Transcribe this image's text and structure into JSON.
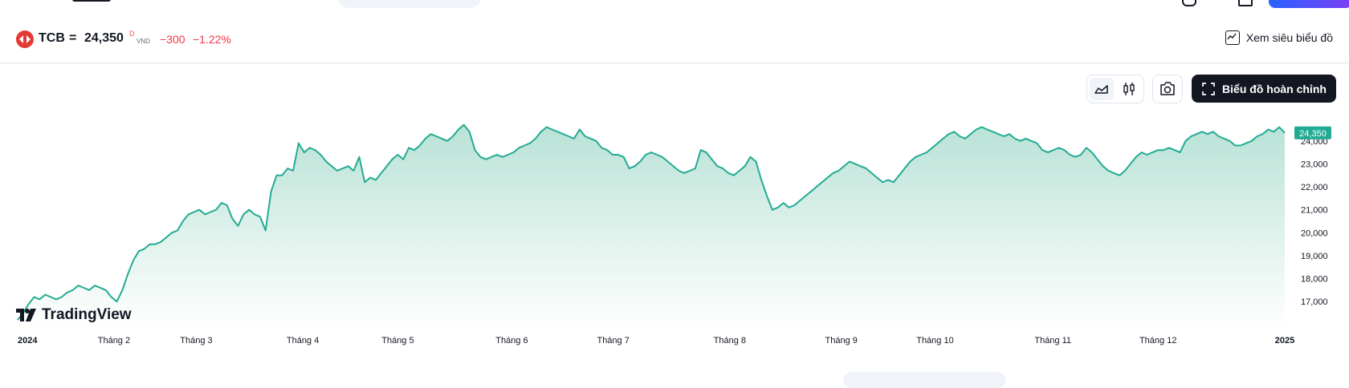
{
  "header": {
    "ticker": "TCB",
    "equals": "=",
    "price": "24,350",
    "price_superscript": "D",
    "currency": "VND",
    "change": "−300",
    "change_percent": "−1.22%",
    "supercharts_label": "Xem siêu biểu đồ"
  },
  "toolbar": {
    "area_icon": "area-chart-icon",
    "candles_icon": "candles-icon",
    "camera_icon": "camera-icon",
    "fullchart_icon": "fullscreen-icon",
    "fullchart_label": "Biểu đồ hoàn chỉnh"
  },
  "branding": {
    "logo_text": "TradingView"
  },
  "colors": {
    "line": "#22ab94",
    "fill_top": "#b9e2d6",
    "fill_bottom": "#ffffff",
    "down": "#f23645",
    "last_price_bg": "#22ab94"
  },
  "chart_data": {
    "type": "area",
    "series_label": "TCB",
    "x_tick_labels": [
      "2024",
      "Tháng 2",
      "Tháng 3",
      "Tháng 4",
      "Tháng 5",
      "Tháng 6",
      "Tháng 7",
      "Tháng 8",
      "Tháng 9",
      "Tháng 10",
      "Tháng 11",
      "Tháng 12",
      "2025"
    ],
    "x_tick_pos": [
      0,
      0.076,
      0.141,
      0.225,
      0.3,
      0.39,
      0.47,
      0.562,
      0.65,
      0.724,
      0.817,
      0.9,
      1
    ],
    "y_tick_labels": [
      "17,000",
      "18,000",
      "19,000",
      "20,000",
      "21,000",
      "22,000",
      "23,000",
      "24,000"
    ],
    "y_ticks": [
      17000,
      18000,
      19000,
      20000,
      21000,
      22000,
      23000,
      24000
    ],
    "ylim": [
      16100,
      24900
    ],
    "last_price": 24350,
    "last_price_label": "24,350",
    "values": [
      16200,
      16500,
      16900,
      17200,
      17100,
      17300,
      17200,
      17100,
      17200,
      17400,
      17500,
      17700,
      17600,
      17500,
      17700,
      17600,
      17500,
      17200,
      17000,
      17500,
      18200,
      18800,
      19200,
      19300,
      19500,
      19500,
      19600,
      19800,
      20000,
      20100,
      20500,
      20800,
      20900,
      21000,
      20800,
      20900,
      21000,
      21300,
      21200,
      20600,
      20300,
      20800,
      21000,
      20800,
      20700,
      20100,
      21800,
      22500,
      22500,
      22800,
      22700,
      23900,
      23500,
      23700,
      23600,
      23400,
      23100,
      22900,
      22700,
      22800,
      22900,
      22700,
      23300,
      22200,
      22400,
      22300,
      22600,
      22900,
      23200,
      23400,
      23200,
      23700,
      23600,
      23800,
      24100,
      24300,
      24200,
      24100,
      24000,
      24200,
      24500,
      24700,
      24400,
      23600,
      23300,
      23200,
      23300,
      23400,
      23300,
      23400,
      23500,
      23700,
      23800,
      23900,
      24100,
      24400,
      24600,
      24500,
      24400,
      24300,
      24200,
      24100,
      24500,
      24200,
      24100,
      24000,
      23700,
      23600,
      23400,
      23400,
      23300,
      22800,
      22900,
      23100,
      23400,
      23500,
      23400,
      23300,
      23100,
      22900,
      22700,
      22600,
      22700,
      22800,
      23600,
      23500,
      23200,
      22900,
      22800,
      22600,
      22500,
      22700,
      22900,
      23300,
      23100,
      22300,
      21600,
      21000,
      21100,
      21300,
      21100,
      21200,
      21400,
      21600,
      21800,
      22000,
      22200,
      22400,
      22600,
      22700,
      22900,
      23100,
      23000,
      22900,
      22800,
      22600,
      22400,
      22200,
      22300,
      22200,
      22500,
      22800,
      23100,
      23300,
      23400,
      23500,
      23700,
      23900,
      24100,
      24300,
      24400,
      24200,
      24100,
      24300,
      24500,
      24600,
      24500,
      24400,
      24300,
      24200,
      24300,
      24100,
      24000,
      24100,
      24000,
      23900,
      23600,
      23500,
      23600,
      23700,
      23600,
      23400,
      23300,
      23400,
      23700,
      23500,
      23200,
      22900,
      22700,
      22600,
      22500,
      22700,
      23000,
      23300,
      23500,
      23400,
      23500,
      23600,
      23600,
      23700,
      23600,
      23500,
      24000,
      24200,
      24300,
      24400,
      24300,
      24400,
      24200,
      24100,
      24000,
      23800,
      23800,
      23900,
      24000,
      24200,
      24300,
      24500,
      24400,
      24600,
      24350
    ]
  }
}
